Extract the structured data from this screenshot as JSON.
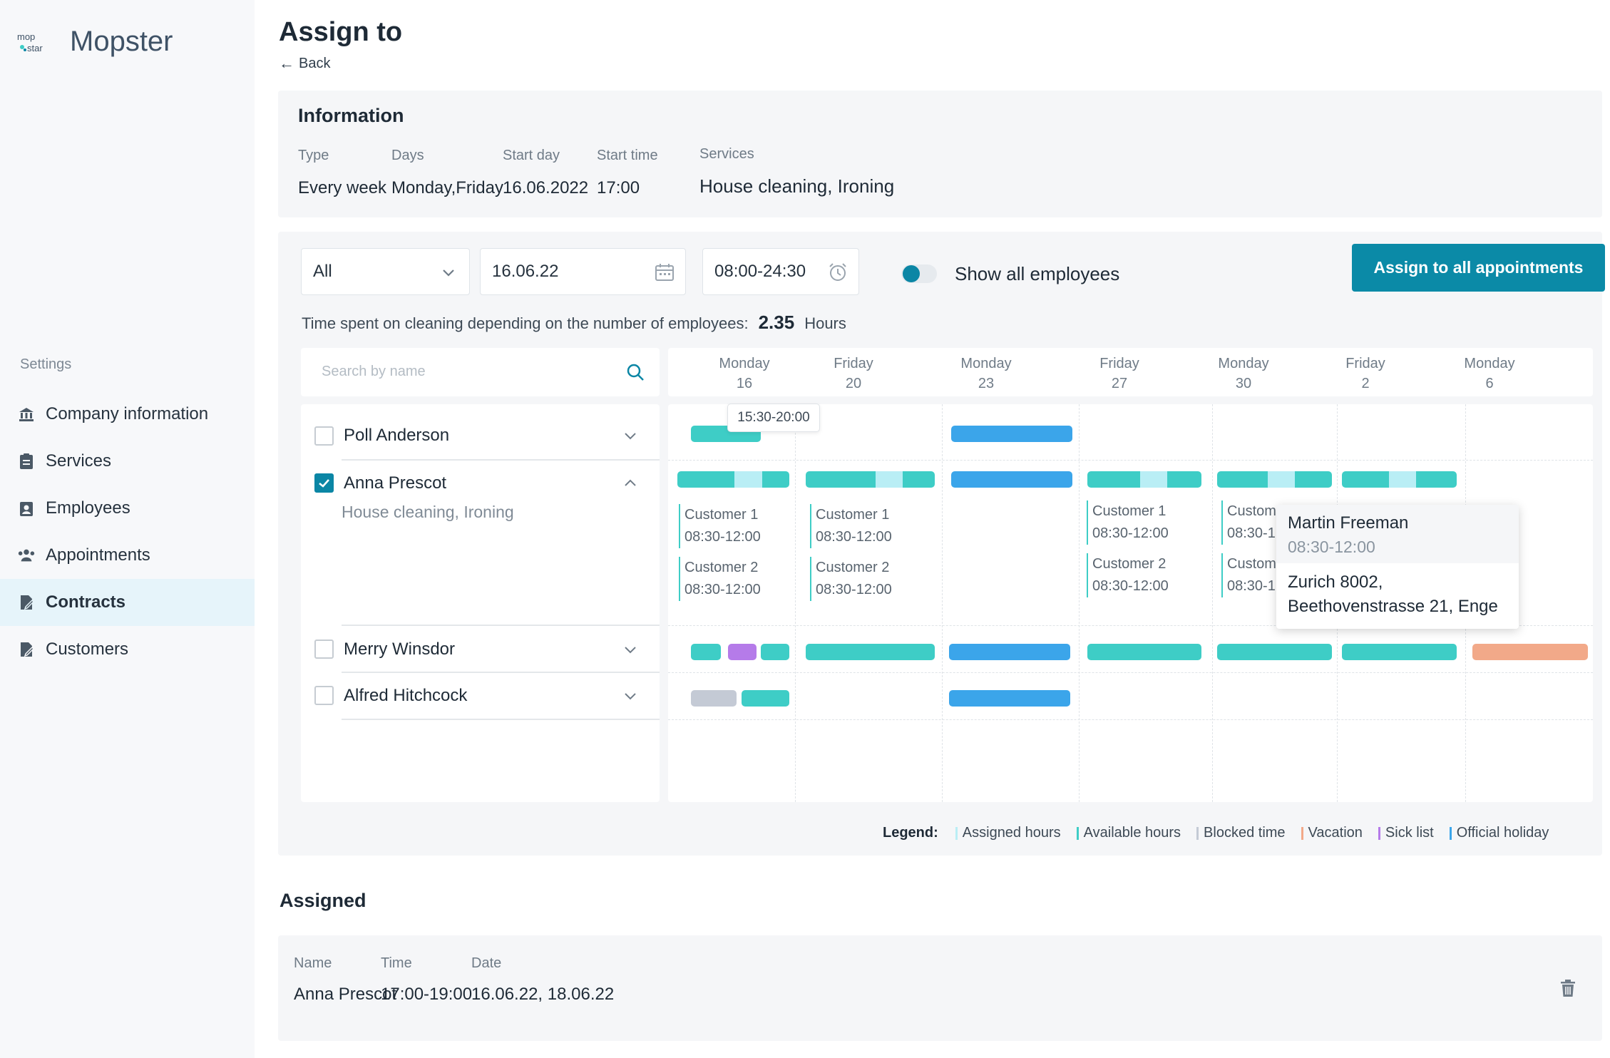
{
  "brand": {
    "name": "Mopster",
    "logo_text_top": "mop",
    "logo_text_bottom": "star"
  },
  "sidebar": {
    "section_label": "Settings",
    "items": [
      {
        "label": "Company information",
        "icon": "bank-icon"
      },
      {
        "label": "Services",
        "icon": "clipboard-icon"
      },
      {
        "label": "Employees",
        "icon": "badge-icon"
      },
      {
        "label": "Appointments",
        "icon": "people-icon"
      },
      {
        "label": "Contracts",
        "icon": "contract-icon",
        "active": true
      },
      {
        "label": "Customers",
        "icon": "contract-icon"
      }
    ]
  },
  "header": {
    "title": "Assign to",
    "back_label": "Back"
  },
  "information": {
    "title": "Information",
    "fields": [
      {
        "label": "Type",
        "value": "Every week"
      },
      {
        "label": "Days",
        "value": "Monday,Friday"
      },
      {
        "label": "Start day",
        "value": "16.06.2022"
      },
      {
        "label": "Start time",
        "value": "17:00"
      },
      {
        "label": "Services",
        "value": "House cleaning, Ironing"
      }
    ]
  },
  "filters": {
    "group_select": "All",
    "date": "16.06.22",
    "time_range": "08:00-24:30",
    "show_all_label": "Show all employees",
    "show_all_on": true,
    "assign_all_label": "Assign to all appointments",
    "time_spent_label": "Time spent on cleaning depending on the number of employees:",
    "time_spent_value": "2.35",
    "time_spent_unit": "Hours",
    "search_placeholder": "Search by name"
  },
  "employees": [
    {
      "name": "Poll Anderson",
      "checked": false,
      "expanded": false
    },
    {
      "name": "Anna Prescot",
      "checked": true,
      "expanded": true,
      "services": "House cleaning,  Ironing"
    },
    {
      "name": "Merry Winsdor",
      "checked": false,
      "expanded": false
    },
    {
      "name": "Alfred Hitchcock",
      "checked": false,
      "expanded": false
    }
  ],
  "calendar": {
    "days": [
      {
        "weekday": "Monday",
        "date": "16"
      },
      {
        "weekday": "Friday",
        "date": "20"
      },
      {
        "weekday": "Monday",
        "date": "23"
      },
      {
        "weekday": "Friday",
        "date": "27"
      },
      {
        "weekday": "Monday",
        "date": "30"
      },
      {
        "weekday": "Friday",
        "date": "2"
      },
      {
        "weekday": "Monday",
        "date": "6"
      }
    ],
    "hover_time": "15:30-20:00",
    "appointments": {
      "col0": [
        {
          "customer": "Customer 1",
          "time": "08:30-12:00"
        },
        {
          "customer": "Customer 2",
          "time": "08:30-12:00"
        }
      ],
      "col1": [
        {
          "customer": "Customer 1",
          "time": "08:30-12:00"
        },
        {
          "customer": "Customer 2",
          "time": "08:30-12:00"
        }
      ],
      "col3": [
        {
          "customer": "Customer 1",
          "time": "08:30-12:00"
        },
        {
          "customer": "Customer 2",
          "time": "08:30-12:00"
        }
      ],
      "col4": [
        {
          "customer": "Custom",
          "time": "08:30-1:"
        },
        {
          "customer": "Custom",
          "time": "08:30-1:"
        }
      ]
    },
    "popup": {
      "name": "Martin Freeman",
      "time": "08:30-12:00",
      "address_line1": "Zurich 8002,",
      "address_line2": "Beethovenstrasse 21, Enge"
    }
  },
  "legend": {
    "title": "Legend:",
    "items": [
      {
        "label": "Assigned hours",
        "color": "#b9eef5"
      },
      {
        "label": "Available hours",
        "color": "#3ecdc6"
      },
      {
        "label": "Blocked time",
        "color": "#c4cad5"
      },
      {
        "label": "Vacation",
        "color": "#f2a989"
      },
      {
        "label": "Sick list",
        "color": "#b57be9"
      },
      {
        "label": "Official holiday",
        "color": "#3ba5ea"
      }
    ]
  },
  "assigned": {
    "title": "Assigned",
    "columns": [
      "Name",
      "Time",
      "Date"
    ],
    "row": {
      "name": "Anna Prescot",
      "time": "17:00-19:00",
      "date": "16.06.22, 18.06.22"
    }
  },
  "colors": {
    "accent": "#0b8aa7",
    "available": "#3ecdc6",
    "assigned": "#b9eef5",
    "holiday": "#3ba5ea",
    "blocked": "#c4cad5",
    "vacation": "#f2a989",
    "sick": "#b57be9"
  }
}
